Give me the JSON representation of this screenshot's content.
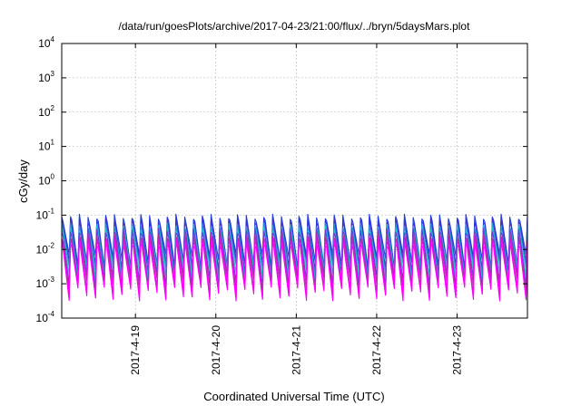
{
  "chart_data": {
    "type": "line",
    "title": "/data/run/goesPlots/archive/2017-04-23/21:00/flux/../bryn/5daysMars.plot",
    "xlabel": "Coordinated Universal Time (UTC)",
    "ylabel": "cGy/day",
    "y_scale": "log",
    "ylim": [
      0.0001,
      10000
    ],
    "xlim": [
      "2017-04-18 02:00",
      "2017-04-23 21:00"
    ],
    "x_ticks": [
      {
        "date": "2017-04-19",
        "label": "2017-4-19"
      },
      {
        "date": "2017-04-20",
        "label": "2017-4-20"
      },
      {
        "date": "2017-04-21",
        "label": "2017-4-21"
      },
      {
        "date": "2017-04-22",
        "label": "2017-4-22"
      },
      {
        "date": "2017-04-23",
        "label": "2017-4-23"
      }
    ],
    "y_ticks": [
      {
        "value": 0.0001,
        "base": "10",
        "exp": "-4"
      },
      {
        "value": 0.001,
        "base": "10",
        "exp": "-3"
      },
      {
        "value": 0.01,
        "base": "10",
        "exp": "-2"
      },
      {
        "value": 0.1,
        "base": "10",
        "exp": "-1"
      },
      {
        "value": 1,
        "base": "10",
        "exp": "0"
      },
      {
        "value": 10,
        "base": "10",
        "exp": "1"
      },
      {
        "value": 100,
        "base": "10",
        "exp": "2"
      },
      {
        "value": 1000,
        "base": "10",
        "exp": "3"
      },
      {
        "value": 10000,
        "base": "10",
        "exp": "4"
      }
    ],
    "grid": true,
    "oscillation": {
      "cycles_per_day": 9.2,
      "x_start": "2017-04-18 02:00",
      "x_end": "2017-04-23 21:00"
    },
    "series": [
      {
        "color": "#1f3fe0",
        "peak": 0.09,
        "trough": 0.0045
      },
      {
        "color": "#3d2fd0",
        "peak": 0.07,
        "trough": 0.003
      },
      {
        "color": "#2a8fd8",
        "peak": 0.05,
        "trough": 0.0025
      },
      {
        "color": "#18c8c8",
        "peak": 0.04,
        "trough": 0.0018
      },
      {
        "color": "#6a3bd8",
        "peak": 0.035,
        "trough": 0.0012
      },
      {
        "color": "#b02aa0",
        "peak": 0.025,
        "trough": 0.0009
      },
      {
        "color": "#e010e0",
        "peak": 0.02,
        "trough": 0.0006
      },
      {
        "color": "#ff00ff",
        "peak": 0.015,
        "trough": 0.0005
      }
    ]
  }
}
